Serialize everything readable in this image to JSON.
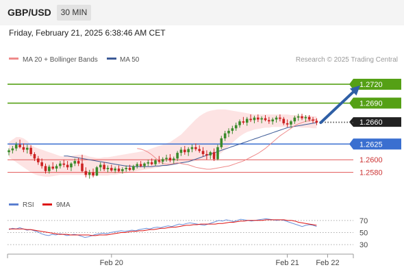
{
  "header": {
    "symbol": "GBP/USD",
    "interval": "30 MIN"
  },
  "timestamp": "Friday, February 21, 2025 6:38:46 AM CET",
  "legend": {
    "ma20": "MA 20 + Bollinger Bands",
    "ma50": "MA 50",
    "credit": "Research © 2025 Trading Central"
  },
  "rsi_legend": {
    "rsi": "RSI",
    "ma": "9MA"
  },
  "colors": {
    "up": "#3a8a2a",
    "down": "#cc2222",
    "resistance": "#55a015",
    "support": "#3a6fd0",
    "minor": "#e25555",
    "ma20": "#ef8a8a",
    "ma50": "#3c5a96",
    "arrow": "#2f5fa5",
    "band": "#fde3e3"
  },
  "chart_data": {
    "type": "candlestick",
    "ylim": [
      1.2548,
      1.2745
    ],
    "levels": [
      {
        "value": 1.272,
        "label": "1.2720",
        "kind": "resistance"
      },
      {
        "value": 1.269,
        "label": "1.2690",
        "kind": "resistance"
      },
      {
        "value": 1.266,
        "label": "1.2660",
        "kind": "current"
      },
      {
        "value": 1.2625,
        "label": "1.2625",
        "kind": "support"
      },
      {
        "value": 1.26,
        "label": "1.2600",
        "kind": "minor"
      },
      {
        "value": 1.258,
        "label": "1.2580",
        "kind": "minor"
      }
    ],
    "x_ticks": [
      {
        "index": 28,
        "label": "Feb 20"
      },
      {
        "index": 76,
        "label": "Feb 21"
      },
      {
        "index": 87,
        "label": "Feb 22"
      }
    ],
    "candles": [
      [
        1.2612,
        1.2618,
        1.2607,
        1.2615
      ],
      [
        1.2615,
        1.2622,
        1.261,
        1.2618
      ],
      [
        1.2618,
        1.2628,
        1.2614,
        1.2624
      ],
      [
        1.2624,
        1.2632,
        1.2618,
        1.262
      ],
      [
        1.262,
        1.2626,
        1.2612,
        1.2616
      ],
      [
        1.2616,
        1.2624,
        1.261,
        1.2619
      ],
      [
        1.2619,
        1.2623,
        1.2606,
        1.2609
      ],
      [
        1.2609,
        1.2612,
        1.2598,
        1.2602
      ],
      [
        1.2602,
        1.2606,
        1.2592,
        1.2596
      ],
      [
        1.2596,
        1.2602,
        1.2586,
        1.259
      ],
      [
        1.259,
        1.2594,
        1.2578,
        1.2582
      ],
      [
        1.2582,
        1.2592,
        1.2578,
        1.2589
      ],
      [
        1.2589,
        1.2596,
        1.2584,
        1.2586
      ],
      [
        1.2586,
        1.2593,
        1.2581,
        1.259
      ],
      [
        1.259,
        1.2598,
        1.2586,
        1.2594
      ],
      [
        1.2594,
        1.26,
        1.2588,
        1.2592
      ],
      [
        1.2592,
        1.2598,
        1.2584,
        1.2588
      ],
      [
        1.2588,
        1.2596,
        1.2582,
        1.2594
      ],
      [
        1.2594,
        1.2602,
        1.259,
        1.2598
      ],
      [
        1.2598,
        1.2603,
        1.259,
        1.2594
      ],
      [
        1.2594,
        1.2608,
        1.258,
        1.2582
      ],
      [
        1.2582,
        1.2588,
        1.2572,
        1.2576
      ],
      [
        1.2576,
        1.2584,
        1.257,
        1.258
      ],
      [
        1.258,
        1.2586,
        1.2572,
        1.2575
      ],
      [
        1.2575,
        1.259,
        1.2574,
        1.2588
      ],
      [
        1.2588,
        1.2596,
        1.2582,
        1.2592
      ],
      [
        1.2592,
        1.2596,
        1.2582,
        1.2585
      ],
      [
        1.2585,
        1.2591,
        1.258,
        1.2587
      ],
      [
        1.2587,
        1.2592,
        1.2581,
        1.2583
      ],
      [
        1.2583,
        1.2589,
        1.2579,
        1.2586
      ],
      [
        1.2586,
        1.2591,
        1.258,
        1.2582
      ],
      [
        1.2582,
        1.2588,
        1.2578,
        1.2585
      ],
      [
        1.2585,
        1.2591,
        1.2581,
        1.2587
      ],
      [
        1.2587,
        1.2592,
        1.2582,
        1.2584
      ],
      [
        1.2584,
        1.2592,
        1.2582,
        1.259
      ],
      [
        1.259,
        1.2596,
        1.2586,
        1.2593
      ],
      [
        1.2593,
        1.2598,
        1.2588,
        1.259
      ],
      [
        1.259,
        1.2596,
        1.2586,
        1.2594
      ],
      [
        1.2594,
        1.26,
        1.259,
        1.2596
      ],
      [
        1.2596,
        1.2602,
        1.2591,
        1.2593
      ],
      [
        1.2593,
        1.2601,
        1.259,
        1.2599
      ],
      [
        1.2599,
        1.2606,
        1.2594,
        1.2597
      ],
      [
        1.2597,
        1.2604,
        1.2593,
        1.2601
      ],
      [
        1.2601,
        1.2608,
        1.2597,
        1.2603
      ],
      [
        1.2603,
        1.2609,
        1.2596,
        1.2599
      ],
      [
        1.2599,
        1.2605,
        1.2594,
        1.2602
      ],
      [
        1.2602,
        1.2614,
        1.2598,
        1.2611
      ],
      [
        1.2611,
        1.262,
        1.2606,
        1.2616
      ],
      [
        1.2616,
        1.2622,
        1.2608,
        1.2612
      ],
      [
        1.2612,
        1.262,
        1.2606,
        1.2617
      ],
      [
        1.2617,
        1.2624,
        1.2612,
        1.262
      ],
      [
        1.262,
        1.2626,
        1.2614,
        1.2617
      ],
      [
        1.2617,
        1.2623,
        1.2611,
        1.2614
      ],
      [
        1.2614,
        1.262,
        1.2605,
        1.2609
      ],
      [
        1.2609,
        1.2615,
        1.26,
        1.2607
      ],
      [
        1.2607,
        1.2614,
        1.2601,
        1.2612
      ],
      [
        1.2612,
        1.2618,
        1.2598,
        1.2601
      ],
      [
        1.2601,
        1.2624,
        1.2599,
        1.262
      ],
      [
        1.262,
        1.2638,
        1.2617,
        1.2634
      ],
      [
        1.2634,
        1.2646,
        1.263,
        1.2642
      ],
      [
        1.2642,
        1.265,
        1.2636,
        1.2646
      ],
      [
        1.2646,
        1.2654,
        1.2641,
        1.265
      ],
      [
        1.265,
        1.2659,
        1.2646,
        1.2655
      ],
      [
        1.2655,
        1.2664,
        1.2651,
        1.2661
      ],
      [
        1.2661,
        1.2668,
        1.2656,
        1.2659
      ],
      [
        1.2659,
        1.2668,
        1.2654,
        1.2665
      ],
      [
        1.2665,
        1.2672,
        1.266,
        1.2663
      ],
      [
        1.2663,
        1.267,
        1.2658,
        1.2667
      ],
      [
        1.2667,
        1.2672,
        1.266,
        1.2664
      ],
      [
        1.2664,
        1.2669,
        1.2658,
        1.2666
      ],
      [
        1.2666,
        1.2671,
        1.2661,
        1.2663
      ],
      [
        1.2663,
        1.2668,
        1.2657,
        1.2661
      ],
      [
        1.2661,
        1.2667,
        1.2656,
        1.2664
      ],
      [
        1.2664,
        1.267,
        1.2659,
        1.2667
      ],
      [
        1.2667,
        1.2672,
        1.2661,
        1.2665
      ],
      [
        1.2665,
        1.2668,
        1.2655,
        1.2658
      ],
      [
        1.2658,
        1.2664,
        1.2652,
        1.2656
      ],
      [
        1.2656,
        1.2663,
        1.2651,
        1.2661
      ],
      [
        1.2661,
        1.267,
        1.2657,
        1.2667
      ],
      [
        1.2667,
        1.2673,
        1.2662,
        1.2669
      ],
      [
        1.2669,
        1.2673,
        1.2663,
        1.2666
      ],
      [
        1.2666,
        1.2671,
        1.266,
        1.2668
      ],
      [
        1.2668,
        1.2671,
        1.2661,
        1.2664
      ],
      [
        1.2664,
        1.2668,
        1.2658,
        1.2662
      ],
      [
        1.2662,
        1.2666,
        1.2655,
        1.2659
      ]
    ],
    "ma20": [
      1.2618,
      1.2617,
      1.2615,
      1.2612,
      1.2608,
      1.2603,
      1.2598,
      1.2594,
      1.2593,
      1.2593,
      1.2594,
      1.2595,
      1.2594,
      1.2593,
      1.2592,
      1.259,
      1.2588,
      1.2587,
      1.2586,
      1.2585,
      1.2585,
      1.2586,
      1.2587,
      1.2588,
      1.2589,
      1.259,
      1.2592,
      1.2594,
      1.2596,
      1.2598,
      1.2601,
      1.2604,
      1.2607,
      1.261,
      1.2614,
      1.2618,
      1.2623,
      1.2628,
      1.2633,
      1.2638,
      1.2642,
      1.2646,
      1.265,
      1.2654,
      1.2657,
      1.2659,
      1.2661,
      1.2662,
      1.2663,
      1.2664
    ],
    "ma20_start": 35,
    "ma50": [
      1.2606,
      1.2606,
      1.2605,
      1.2604,
      1.2603,
      1.2602,
      1.2601,
      1.26,
      1.2599,
      1.2598,
      1.2597,
      1.2596,
      1.2595,
      1.2594,
      1.2593,
      1.2592,
      1.2591,
      1.259,
      1.259,
      1.2589,
      1.2589,
      1.2589,
      1.2589,
      1.2589,
      1.2589,
      1.259,
      1.259,
      1.2591,
      1.2591,
      1.2592,
      1.2593,
      1.2594,
      1.2595,
      1.2596,
      1.2597,
      1.2599,
      1.2601,
      1.2603,
      1.2605,
      1.2607,
      1.2609,
      1.2611,
      1.2613,
      1.2615,
      1.2617,
      1.2619,
      1.2621,
      1.2623,
      1.2625,
      1.2627,
      1.2629,
      1.2631,
      1.2633,
      1.2635,
      1.2637,
      1.2639,
      1.2641,
      1.2643,
      1.2645,
      1.2647,
      1.2649,
      1.2651,
      1.2652,
      1.2653,
      1.2654,
      1.2655,
      1.2656,
      1.2657,
      1.2658,
      1.2659
    ],
    "ma50_start": 15,
    "band_upper": [
      1.2628,
      1.2632,
      1.2636,
      1.2636,
      1.2634,
      1.263,
      1.2624,
      1.262,
      1.2618,
      1.2616,
      1.2614,
      1.2612,
      1.261,
      1.2608,
      1.2606,
      1.2605,
      1.2605,
      1.2606,
      1.2607,
      1.2608,
      1.2608,
      1.2607,
      1.2605,
      1.2604,
      1.2603,
      1.2603,
      1.2604,
      1.2604,
      1.2605,
      1.2606,
      1.2607,
      1.2608,
      1.2609,
      1.261,
      1.2611,
      1.2612,
      1.2613,
      1.2614,
      1.2616,
      1.2618,
      1.262,
      1.2622,
      1.2624,
      1.2626,
      1.2628,
      1.2632,
      1.2636,
      1.264,
      1.2646,
      1.2652,
      1.2658,
      1.2664,
      1.2669,
      1.2673,
      1.2676,
      1.2678,
      1.2679,
      1.268,
      1.268,
      1.268,
      1.2679,
      1.2678,
      1.2677,
      1.2676,
      1.2675,
      1.2674,
      1.2673,
      1.2672,
      1.2672,
      1.2672,
      1.2672,
      1.2672,
      1.2672,
      1.2672,
      1.2672,
      1.2672,
      1.2672,
      1.2671,
      1.2671,
      1.2671,
      1.267,
      1.267,
      1.267,
      1.2669,
      1.2669
    ],
    "band_lower": [
      1.2604,
      1.26,
      1.2596,
      1.2592,
      1.2588,
      1.2584,
      1.258,
      1.2577,
      1.2575,
      1.2574,
      1.2573,
      1.2573,
      1.2574,
      1.2575,
      1.2576,
      1.2576,
      1.2576,
      1.2576,
      1.2576,
      1.2576,
      1.2576,
      1.2575,
      1.2575,
      1.2575,
      1.2575,
      1.2575,
      1.2575,
      1.2575,
      1.2576,
      1.2576,
      1.2577,
      1.2578,
      1.2579,
      1.258,
      1.2581,
      1.2582,
      1.2583,
      1.2584,
      1.2585,
      1.2586,
      1.2587,
      1.2588,
      1.2589,
      1.259,
      1.2591,
      1.2592,
      1.2593,
      1.2594,
      1.2595,
      1.2596,
      1.2597,
      1.2598,
      1.2599,
      1.26,
      1.2601,
      1.2602,
      1.2604,
      1.2607,
      1.2611,
      1.2616,
      1.2621,
      1.2627,
      1.2632,
      1.2637,
      1.2641,
      1.2644,
      1.2646,
      1.2648,
      1.2649,
      1.265,
      1.2651,
      1.2651,
      1.2652,
      1.2652,
      1.2652,
      1.2652,
      1.2652,
      1.2652,
      1.2652,
      1.2652,
      1.2651,
      1.2651,
      1.2651,
      1.265,
      1.265
    ],
    "projection": {
      "from_index": 84,
      "from_value": 1.2659,
      "to_index": 94,
      "to_value": 1.2718
    },
    "rsi": {
      "ylim": [
        20,
        80
      ],
      "levels": [
        70,
        50,
        30
      ],
      "values": [
        55,
        57,
        56,
        58,
        56,
        54,
        55,
        53,
        51,
        48,
        46,
        45,
        47,
        46,
        48,
        47,
        45,
        46,
        47,
        46,
        44,
        42,
        43,
        45,
        47,
        48,
        49,
        48,
        50,
        51,
        52,
        53,
        52,
        53,
        54,
        53,
        55,
        56,
        57,
        56,
        58,
        59,
        58,
        60,
        61,
        60,
        62,
        64,
        63,
        65,
        66,
        65,
        64,
        63,
        62,
        64,
        66,
        68,
        70,
        69,
        71,
        70,
        68,
        70,
        72,
        71,
        70,
        69,
        70,
        71,
        72,
        73,
        72,
        71,
        70,
        71,
        70,
        68,
        66,
        64,
        62,
        60,
        62,
        63,
        62,
        60
      ],
      "ma": [
        56,
        56,
        56,
        56,
        56,
        55,
        55,
        54,
        53,
        52,
        51,
        50,
        49,
        48,
        47,
        47,
        47,
        46,
        46,
        46,
        46,
        46,
        46,
        45,
        45,
        46,
        46,
        46,
        47,
        48,
        49,
        50,
        50,
        51,
        52,
        52,
        53,
        53,
        54,
        55,
        55,
        56,
        57,
        57,
        58,
        59,
        59,
        60,
        61,
        62,
        62,
        63,
        63,
        64,
        64,
        64,
        64,
        64,
        65,
        65,
        66,
        67,
        67,
        68,
        69,
        69,
        70,
        70,
        70,
        70,
        70,
        71,
        71,
        71,
        71,
        71,
        71,
        70,
        70,
        69,
        67,
        66,
        65,
        64,
        63,
        62
      ]
    }
  }
}
